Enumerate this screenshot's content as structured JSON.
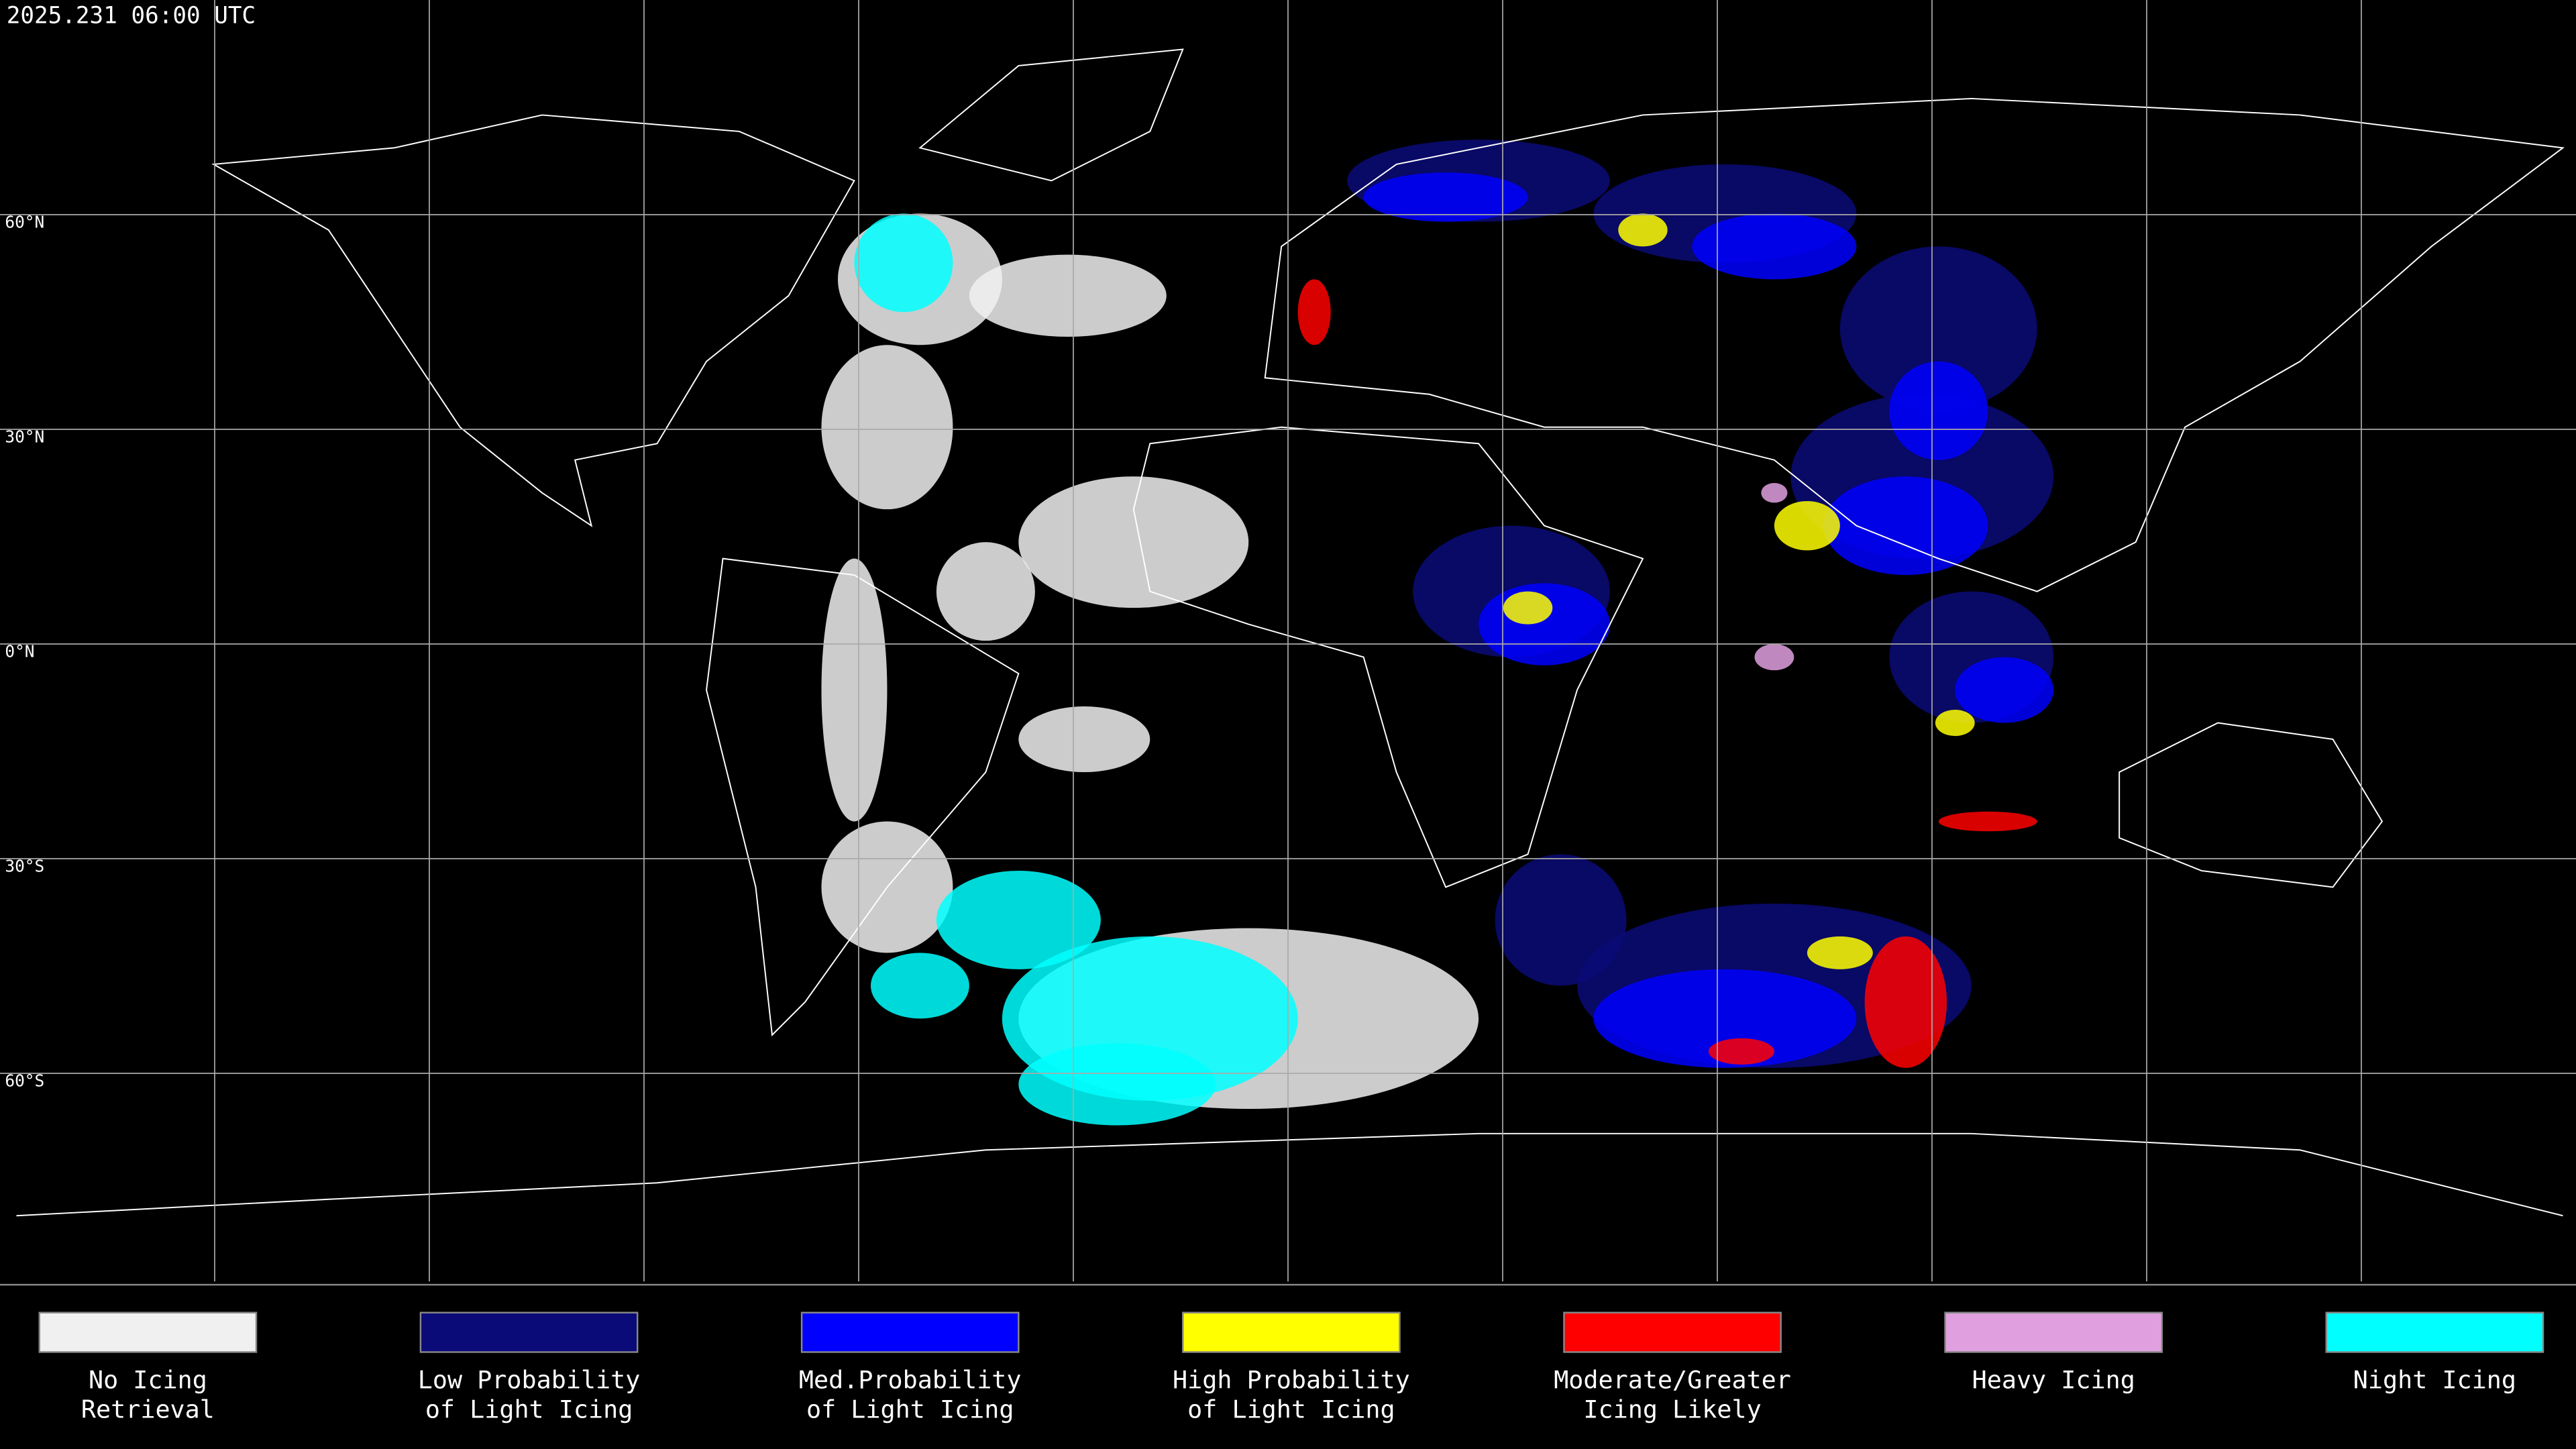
{
  "map": {
    "title": "2025.231 06:00 UTC",
    "lat_labels": [
      "60°N",
      "30°N",
      "0°N",
      "30°S",
      "60°S"
    ],
    "legend": [
      {
        "color": "#f0f0f0",
        "lines": [
          "No Icing",
          "Retrieval"
        ]
      },
      {
        "color": "#0a0a78",
        "lines": [
          "Low Probability",
          "of Light Icing"
        ]
      },
      {
        "color": "#0000ff",
        "lines": [
          "Med.Probability",
          "of Light Icing"
        ]
      },
      {
        "color": "#ffff00",
        "lines": [
          "High Probability",
          "of Light Icing"
        ]
      },
      {
        "color": "#ff0000",
        "lines": [
          "Moderate/Greater",
          "Icing Likely"
        ]
      },
      {
        "color": "#e0a0e0",
        "lines": [
          "Heavy Icing"
        ]
      },
      {
        "color": "#00ffff",
        "lines": [
          "Night Icing"
        ]
      }
    ]
  }
}
